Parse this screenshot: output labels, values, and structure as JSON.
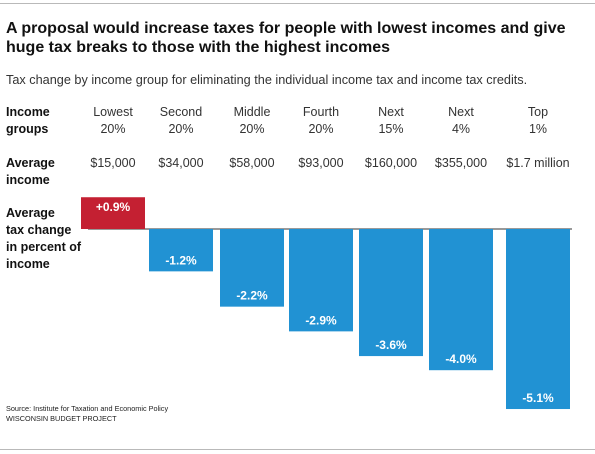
{
  "title": "A proposal would increase taxes for people with lowest incomes and give huge tax breaks to those with the highest incomes",
  "subtitle": "Tax change by income group for eliminating the individual income tax and income tax credits.",
  "row_labels": {
    "groups": [
      "Income",
      "groups"
    ],
    "income": [
      "Average",
      "income"
    ],
    "change": [
      "Average",
      "tax change",
      "in percent of",
      "income"
    ]
  },
  "source": [
    "Source: Institute for Taxation and Economic Policy",
    "WISCONSIN BUDGET PROJECT"
  ],
  "colors": {
    "positive": "#c42032",
    "negative": "#2192d3",
    "label_text": "#ffffff",
    "baseline": "#333333"
  },
  "chart_data": {
    "type": "bar",
    "categories": [
      "Lowest 20%",
      "Second 20%",
      "Middle 20%",
      "Fourth 20%",
      "Next 15%",
      "Next 4%",
      "Top 1%"
    ],
    "category_lines": [
      [
        "Lowest",
        "20%"
      ],
      [
        "Second",
        "20%"
      ],
      [
        "Middle",
        "20%"
      ],
      [
        "Fourth",
        "20%"
      ],
      [
        "Next",
        "15%"
      ],
      [
        "Next",
        "4%"
      ],
      [
        "Top",
        "1%"
      ]
    ],
    "average_income": [
      "$15,000",
      "$34,000",
      "$58,000",
      "$93,000",
      "$160,000",
      "$355,000",
      "$1.7 million"
    ],
    "values": [
      0.9,
      -1.2,
      -2.2,
      -2.9,
      -3.6,
      -4.0,
      -5.1
    ],
    "value_labels": [
      "+0.9%",
      "-1.2%",
      "-2.2%",
      "-2.9%",
      "-3.6%",
      "-4.0%",
      "-5.1%"
    ],
    "title": "A proposal would increase taxes for people with lowest incomes and give huge tax breaks to those with the highest incomes",
    "xlabel": "",
    "ylabel": "Average tax change in percent of income",
    "ylim": [
      -5.1,
      0.9
    ],
    "grid": false,
    "legend": "none"
  }
}
